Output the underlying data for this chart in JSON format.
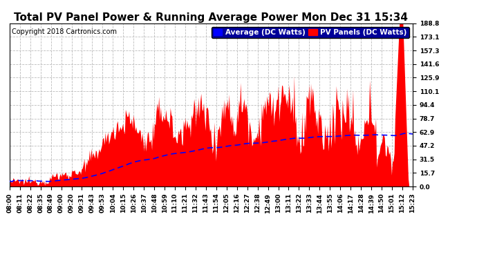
{
  "title": "Total PV Panel Power & Running Average Power Mon Dec 31 15:34",
  "copyright": "Copyright 2018 Cartronics.com",
  "legend_average": "Average (DC Watts)",
  "legend_pv": "PV Panels (DC Watts)",
  "background_color": "#ffffff",
  "grid_color": "#bbbbbb",
  "pv_color": "#ff0000",
  "avg_color": "#0000ff",
  "ymin": 0.0,
  "ymax": 188.8,
  "yticks": [
    0.0,
    15.7,
    31.5,
    47.2,
    62.9,
    78.7,
    94.4,
    110.1,
    125.9,
    141.6,
    157.3,
    173.1,
    188.8
  ],
  "time_labels": [
    "08:00",
    "08:11",
    "08:22",
    "08:35",
    "08:49",
    "09:00",
    "09:20",
    "09:31",
    "09:43",
    "09:53",
    "10:04",
    "10:15",
    "10:26",
    "10:37",
    "10:48",
    "10:59",
    "11:10",
    "11:21",
    "11:32",
    "11:43",
    "11:54",
    "12:05",
    "12:16",
    "12:27",
    "12:38",
    "12:49",
    "13:00",
    "13:11",
    "13:22",
    "13:33",
    "13:44",
    "13:55",
    "14:06",
    "14:17",
    "14:28",
    "14:39",
    "14:50",
    "15:01",
    "15:12",
    "15:23"
  ],
  "title_fontsize": 11,
  "copyright_fontsize": 7,
  "tick_fontsize": 6.5,
  "legend_fontsize": 7.5
}
